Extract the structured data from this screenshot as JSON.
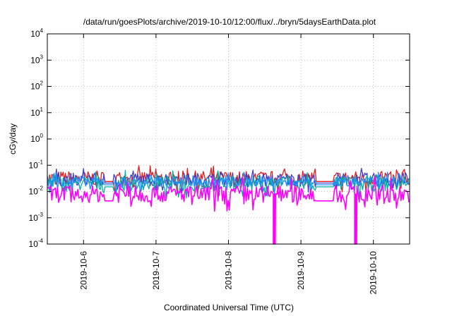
{
  "chart_data": {
    "type": "line",
    "title": "/data/run/goesPlots/archive/2019-10-10/12:00/flux/../bryn/5daysEarthData.plot",
    "xlabel": "Coordinated Universal Time (UTC)",
    "ylabel": "cGy/day",
    "yscale": "log",
    "ylim": [
      0.0001,
      10000
    ],
    "xlim": [
      "2019-10-05T12:00",
      "2019-10-10T12:00"
    ],
    "x_ticks": [
      "2019-10-6",
      "2019-10-7",
      "2019-10-8",
      "2019-10-9",
      "2019-10-10"
    ],
    "y_ticks": [
      {
        "base": "10",
        "exp": "-4"
      },
      {
        "base": "10",
        "exp": "-3"
      },
      {
        "base": "10",
        "exp": "-2"
      },
      {
        "base": "10",
        "exp": "-1"
      },
      {
        "base": "10",
        "exp": "0"
      },
      {
        "base": "10",
        "exp": "1"
      },
      {
        "base": "10",
        "exp": "2"
      },
      {
        "base": "10",
        "exp": "3"
      },
      {
        "base": "10",
        "exp": "4"
      }
    ],
    "grid": true,
    "legend": "none",
    "data_gaps": [
      {
        "start": "2019-10-06T07:00",
        "end": "2019-10-06T10:00"
      },
      {
        "start": "2019-10-09T05:00",
        "end": "2019-10-09T11:00"
      }
    ],
    "dropouts": [
      {
        "series": "magenta",
        "x": "2019-10-08T15:00",
        "value": 0.0001
      },
      {
        "series": "magenta",
        "x": "2019-10-09T18:00",
        "value": 0.0001
      }
    ],
    "series": [
      {
        "color": "#e41a1c",
        "base": 0.032,
        "spread": 0.28
      },
      {
        "color": "#4040d0",
        "base": 0.028,
        "spread": 0.26
      },
      {
        "color": "#00b0a0",
        "base": 0.02,
        "spread": 0.3
      },
      {
        "color": "#1e90ff",
        "base": 0.024,
        "spread": 0.18
      },
      {
        "color": "#ff00ff",
        "base": 0.008,
        "spread": 0.32
      }
    ]
  }
}
